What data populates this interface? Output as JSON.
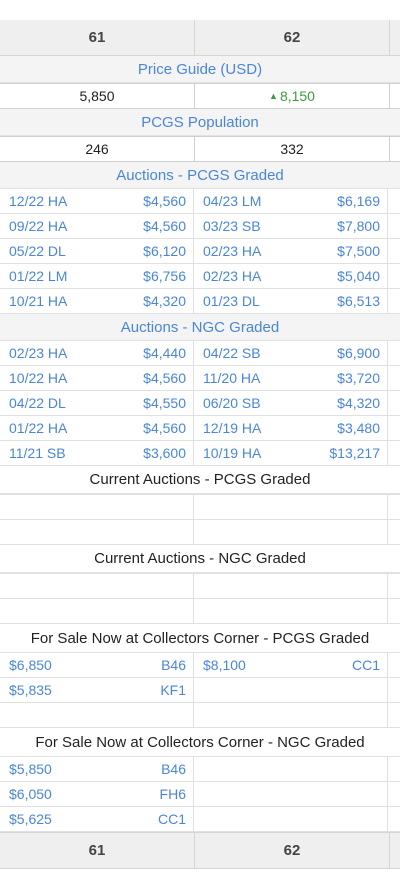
{
  "grades": [
    "61",
    "62"
  ],
  "price_guide": {
    "title": "Price Guide (USD)",
    "values": [
      "5,850",
      "8,150"
    ],
    "trend_up": "▲"
  },
  "pcgs_population": {
    "title": "PCGS Population",
    "values": [
      "246",
      "332"
    ]
  },
  "auctions_pcgs": {
    "title": "Auctions - PCGS Graded",
    "rows": [
      [
        {
          "date": "12/22 HA",
          "price": "$4,560"
        },
        {
          "date": "04/23 LM",
          "price": "$6,169"
        }
      ],
      [
        {
          "date": "09/22 HA",
          "price": "$4,560"
        },
        {
          "date": "03/23 SB",
          "price": "$7,800"
        }
      ],
      [
        {
          "date": "05/22 DL",
          "price": "$6,120"
        },
        {
          "date": "02/23 HA",
          "price": "$7,500"
        }
      ],
      [
        {
          "date": "01/22 LM",
          "price": "$6,756"
        },
        {
          "date": "02/23 HA",
          "price": "$5,040"
        }
      ],
      [
        {
          "date": "10/21 HA",
          "price": "$4,320"
        },
        {
          "date": "01/23 DL",
          "price": "$6,513"
        }
      ]
    ]
  },
  "auctions_ngc": {
    "title": "Auctions - NGC Graded",
    "rows": [
      [
        {
          "date": "02/23 HA",
          "price": "$4,440"
        },
        {
          "date": "04/22 SB",
          "price": "$6,900"
        }
      ],
      [
        {
          "date": "10/22 HA",
          "price": "$4,560"
        },
        {
          "date": "11/20 HA",
          "price": "$3,720"
        }
      ],
      [
        {
          "date": "04/22 DL",
          "price": "$4,550"
        },
        {
          "date": "06/20 SB",
          "price": "$4,320"
        }
      ],
      [
        {
          "date": "01/22 HA",
          "price": "$4,560"
        },
        {
          "date": "12/19 HA",
          "price": "$3,480"
        }
      ],
      [
        {
          "date": "11/21 SB",
          "price": "$3,600"
        },
        {
          "date": "10/19 HA",
          "price": "$13,217"
        }
      ]
    ]
  },
  "current_auctions_pcgs": {
    "title": "Current Auctions - PCGS Graded"
  },
  "current_auctions_ngc": {
    "title": "Current Auctions - NGC Graded"
  },
  "for_sale_pcgs": {
    "title": "For Sale Now at Collectors Corner - PCGS Graded",
    "rows": [
      [
        {
          "price": "$6,850",
          "seller": "B46"
        },
        {
          "price": "$8,100",
          "seller": "CC1"
        }
      ],
      [
        {
          "price": "$5,835",
          "seller": "KF1"
        },
        {
          "price": "",
          "seller": ""
        }
      ]
    ]
  },
  "for_sale_ngc": {
    "title": "For Sale Now at Collectors Corner - NGC Graded",
    "rows": [
      [
        {
          "price": "$5,850",
          "seller": "B46"
        },
        {
          "price": "",
          "seller": ""
        }
      ],
      [
        {
          "price": "$6,050",
          "seller": "FH6"
        },
        {
          "price": "",
          "seller": ""
        }
      ],
      [
        {
          "price": "$5,625",
          "seller": "CC1"
        },
        {
          "price": "",
          "seller": ""
        }
      ]
    ]
  },
  "colors": {
    "link": "#4a86d8",
    "trend_up": "#3d9a3d",
    "header_bg": "#efefef"
  }
}
